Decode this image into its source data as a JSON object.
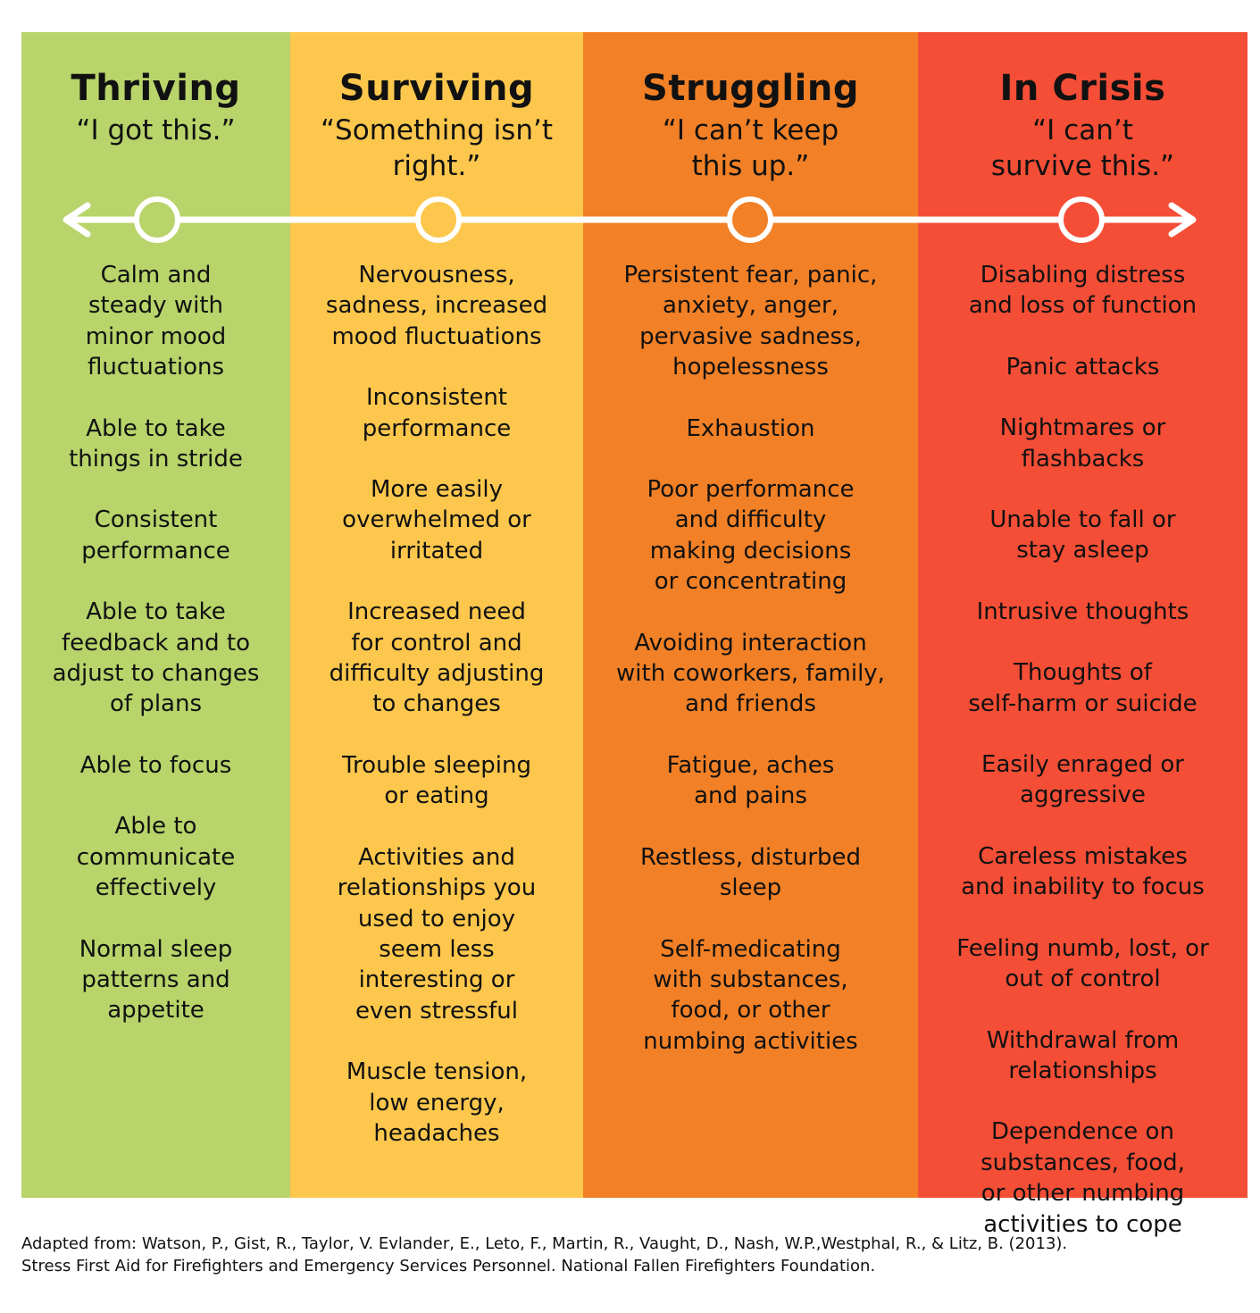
{
  "colors": {
    "thriving": "#b8d46a",
    "surviving": "#fcc74c",
    "struggling": "#f18026",
    "in_crisis": "#f44e36",
    "line": "#ffffff"
  },
  "columns": [
    {
      "title": "Thriving",
      "quote": "“I got this.”",
      "items": [
        "Calm and\nsteady with\nminor mood\nfluctuations",
        "Able to take\nthings in stride",
        "Consistent\nperformance",
        "Able to take\nfeedback and to\nadjust to changes\nof plans",
        "Able to focus",
        "Able to\ncommunicate\neffectively",
        "Normal sleep\npatterns and\nappetite"
      ]
    },
    {
      "title": "Surviving",
      "quote": "“Something isn’t\nright.”",
      "items": [
        "Nervousness,\nsadness, increased\nmood fluctuations",
        "Inconsistent\nperformance",
        "More easily\noverwhelmed or\nirritated",
        "Increased need\nfor control and\ndifficulty adjusting\nto changes",
        "Trouble sleeping\nor eating",
        "Activities and\nrelationships you\nused to enjoy\nseem less\ninteresting or\neven stressful",
        "Muscle tension,\nlow energy,\nheadaches"
      ]
    },
    {
      "title": "Struggling",
      "quote": "“I can’t keep\nthis up.”",
      "items": [
        "Persistent fear, panic,\nanxiety, anger,\npervasive sadness,\nhopelessness",
        "Exhaustion",
        "Poor performance\nand difficulty\nmaking decisions\nor concentrating",
        "Avoiding interaction\nwith coworkers, family,\nand friends",
        "Fatigue, aches\nand pains",
        "Restless, disturbed\nsleep",
        "Self-medicating\nwith substances,\nfood, or other\nnumbing activities"
      ]
    },
    {
      "title": "In Crisis",
      "quote": "“I can’t\nsurvive this.”",
      "items": [
        "Disabling distress\nand loss of function",
        "Panic attacks",
        "Nightmares or\nflashbacks",
        "Unable to fall or\nstay asleep",
        "Intrusive thoughts",
        "Thoughts of\nself-harm or suicide",
        "Easily enraged or\naggressive",
        "Careless mistakes\nand inability to focus",
        "Feeling numb, lost, or\nout of control",
        "Withdrawal from\nrelationships",
        "Dependence on\nsubstances, food,\nor other numbing\nactivities to cope"
      ]
    }
  ],
  "citation": {
    "line1": "Adapted from: Watson, P., Gist, R., Taylor, V. Evlander, E., Leto, F., Martin, R., Vaught, D., Nash, W.P.,Westphal, R., & Litz, B. (2013).",
    "line2": "Stress First Aid for Firefighters and Emergency Services Personnel. National Fallen Firefighters Foundation."
  }
}
